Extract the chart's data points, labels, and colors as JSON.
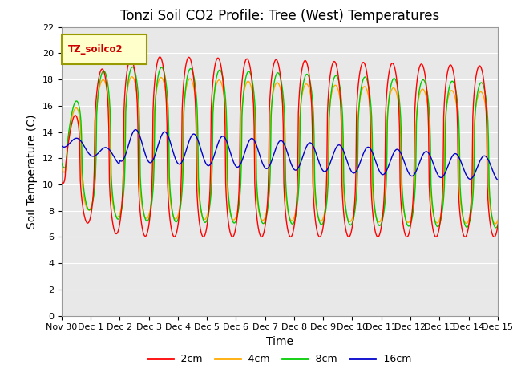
{
  "title": "Tonzi Soil CO2 Profile: Tree (West) Temperatures",
  "xlabel": "Time",
  "ylabel": "Soil Temperature (C)",
  "legend_label": "TZ_soilco2",
  "ylim": [
    0,
    22
  ],
  "series_labels": [
    "-2cm",
    "-4cm",
    "-8cm",
    "-16cm"
  ],
  "series_colors": [
    "#ff0000",
    "#ffaa00",
    "#00cc00",
    "#0000cc"
  ],
  "plot_bg_color": "#e8e8e8",
  "x_tick_labels": [
    "Nov 30",
    "Dec 1",
    "Dec 2",
    "Dec 3",
    "Dec 4",
    "Dec 5",
    "Dec 6",
    "Dec 7",
    "Dec 8",
    "Dec 9",
    "Dec 10",
    "Dec 11",
    "Dec 12",
    "Dec 13",
    "Dec 14",
    "Dec 15"
  ],
  "title_fontsize": 12,
  "axis_label_fontsize": 10,
  "tick_fontsize": 8
}
